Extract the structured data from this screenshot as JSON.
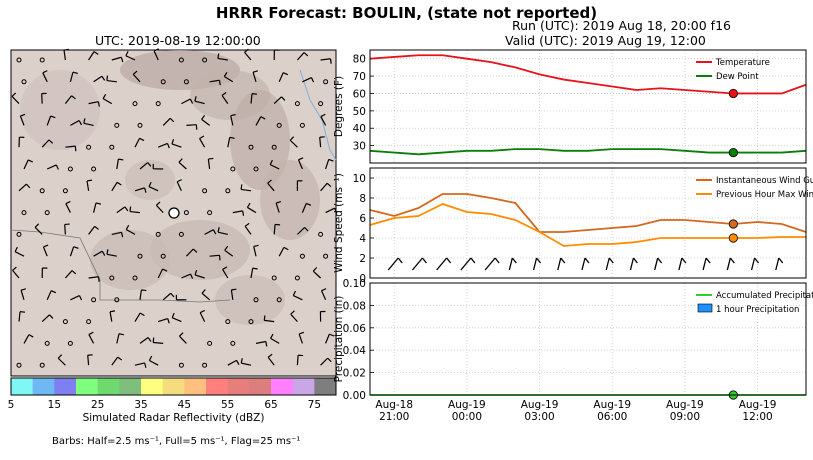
{
  "title": "HRRR Forecast: BOULIN, (state not reported)",
  "run_line": "Run (UTC): 2019 Aug 18, 20:00 f16",
  "valid_line": "Valid (UTC): 2019 Aug 19, 12:00",
  "map": {
    "time_label": "UTC: 2019-08-19 12:00:00",
    "colorbar_label": "Simulated Radar Reflectivity (dBZ)",
    "colorbar_ticks": [
      "5",
      "15",
      "25",
      "35",
      "45",
      "55",
      "65",
      "75"
    ],
    "colorbar_colors": [
      "#7ff7f5",
      "#6eb9f3",
      "#7f7ff2",
      "#7eff7e",
      "#6ed96e",
      "#7ebf7e",
      "#ffff7f",
      "#f5dc7f",
      "#ffbf7f",
      "#ff7e7e",
      "#e77e7e",
      "#dc7e7e",
      "#ff7fff",
      "#c9a6e5",
      "#7e7e7e"
    ],
    "barb_note": "Barbs: Half=2.5 ms⁻¹, Full=5 ms⁻¹, Flag=25 ms⁻¹"
  },
  "chart_data": [
    {
      "type": "line",
      "ylabel": "Degrees (F)",
      "ylim": [
        20,
        85
      ],
      "yticks": [
        30,
        40,
        50,
        60,
        70,
        80
      ],
      "x_hours": [
        0,
        1,
        2,
        3,
        4,
        5,
        6,
        7,
        8,
        9,
        10,
        11,
        12,
        13,
        14,
        15,
        16,
        17,
        18
      ],
      "series": [
        {
          "name": "Temperature",
          "color": "#e8121a",
          "values": [
            80,
            81,
            82,
            82,
            80,
            78,
            75,
            71,
            68,
            66,
            64,
            62,
            63,
            62,
            61,
            60,
            60,
            60,
            65
          ]
        },
        {
          "name": "Dew Point",
          "color": "#0a7d0a",
          "values": [
            27,
            26,
            25,
            26,
            27,
            27,
            28,
            28,
            27,
            27,
            28,
            28,
            28,
            27,
            26,
            26,
            26,
            26,
            27
          ]
        }
      ],
      "marker_hour": 15,
      "legend": "top-right",
      "grid": true
    },
    {
      "type": "line",
      "ylabel": "Wind Speed (ms⁻¹)",
      "ylim": [
        0,
        11
      ],
      "yticks": [
        0,
        2,
        4,
        6,
        8,
        10
      ],
      "x_hours": [
        0,
        1,
        2,
        3,
        4,
        5,
        6,
        7,
        8,
        9,
        10,
        11,
        12,
        13,
        14,
        15,
        16,
        17,
        18
      ],
      "series": [
        {
          "name": "Instantaneous Wind Gust",
          "color": "#d2691e",
          "values": [
            6.8,
            6.2,
            7.0,
            8.4,
            8.4,
            8.0,
            7.5,
            4.6,
            4.6,
            4.8,
            5.0,
            5.2,
            5.8,
            5.8,
            5.6,
            5.4,
            5.6,
            5.4,
            4.6
          ]
        },
        {
          "name": "Previous Hour Max Wind",
          "color": "#ff8c00",
          "values": [
            5.3,
            6.0,
            6.2,
            7.4,
            6.6,
            6.4,
            5.8,
            4.6,
            3.2,
            3.4,
            3.4,
            3.6,
            4.0,
            4.0,
            4.0,
            4.0,
            4.0,
            4.1,
            4.1
          ]
        }
      ],
      "marker_hour": 15,
      "legend": "top-right",
      "grid": true
    },
    {
      "type": "bar",
      "ylabel": "Precipitation (in)",
      "ylim": [
        0,
        0.1
      ],
      "yticks": [
        "0.00",
        "0.02",
        "0.04",
        "0.06",
        "0.08",
        "0.10"
      ],
      "series": [
        {
          "name": "Accumulated Precipitation",
          "color": "#33cc33",
          "values": [
            0,
            0,
            0,
            0,
            0,
            0,
            0,
            0,
            0,
            0,
            0,
            0,
            0,
            0,
            0,
            0,
            0,
            0,
            0
          ]
        },
        {
          "name": "1 hour Precipitation",
          "color": "#1e90ff",
          "values": [
            0,
            0,
            0,
            0,
            0,
            0,
            0,
            0,
            0,
            0,
            0,
            0,
            0,
            0,
            0,
            0,
            0,
            0,
            0
          ]
        }
      ],
      "marker_hour": 15,
      "legend": "top-right",
      "grid": true,
      "x_tick_labels": [
        {
          "hour": 1,
          "line1": "Aug-18",
          "line2": "21:00"
        },
        {
          "hour": 4,
          "line1": "Aug-19",
          "line2": "00:00"
        },
        {
          "hour": 7,
          "line1": "Aug-19",
          "line2": "03:00"
        },
        {
          "hour": 10,
          "line1": "Aug-19",
          "line2": "06:00"
        },
        {
          "hour": 13,
          "line1": "Aug-19",
          "line2": "09:00"
        },
        {
          "hour": 16,
          "line1": "Aug-19",
          "line2": "12:00"
        }
      ]
    }
  ]
}
